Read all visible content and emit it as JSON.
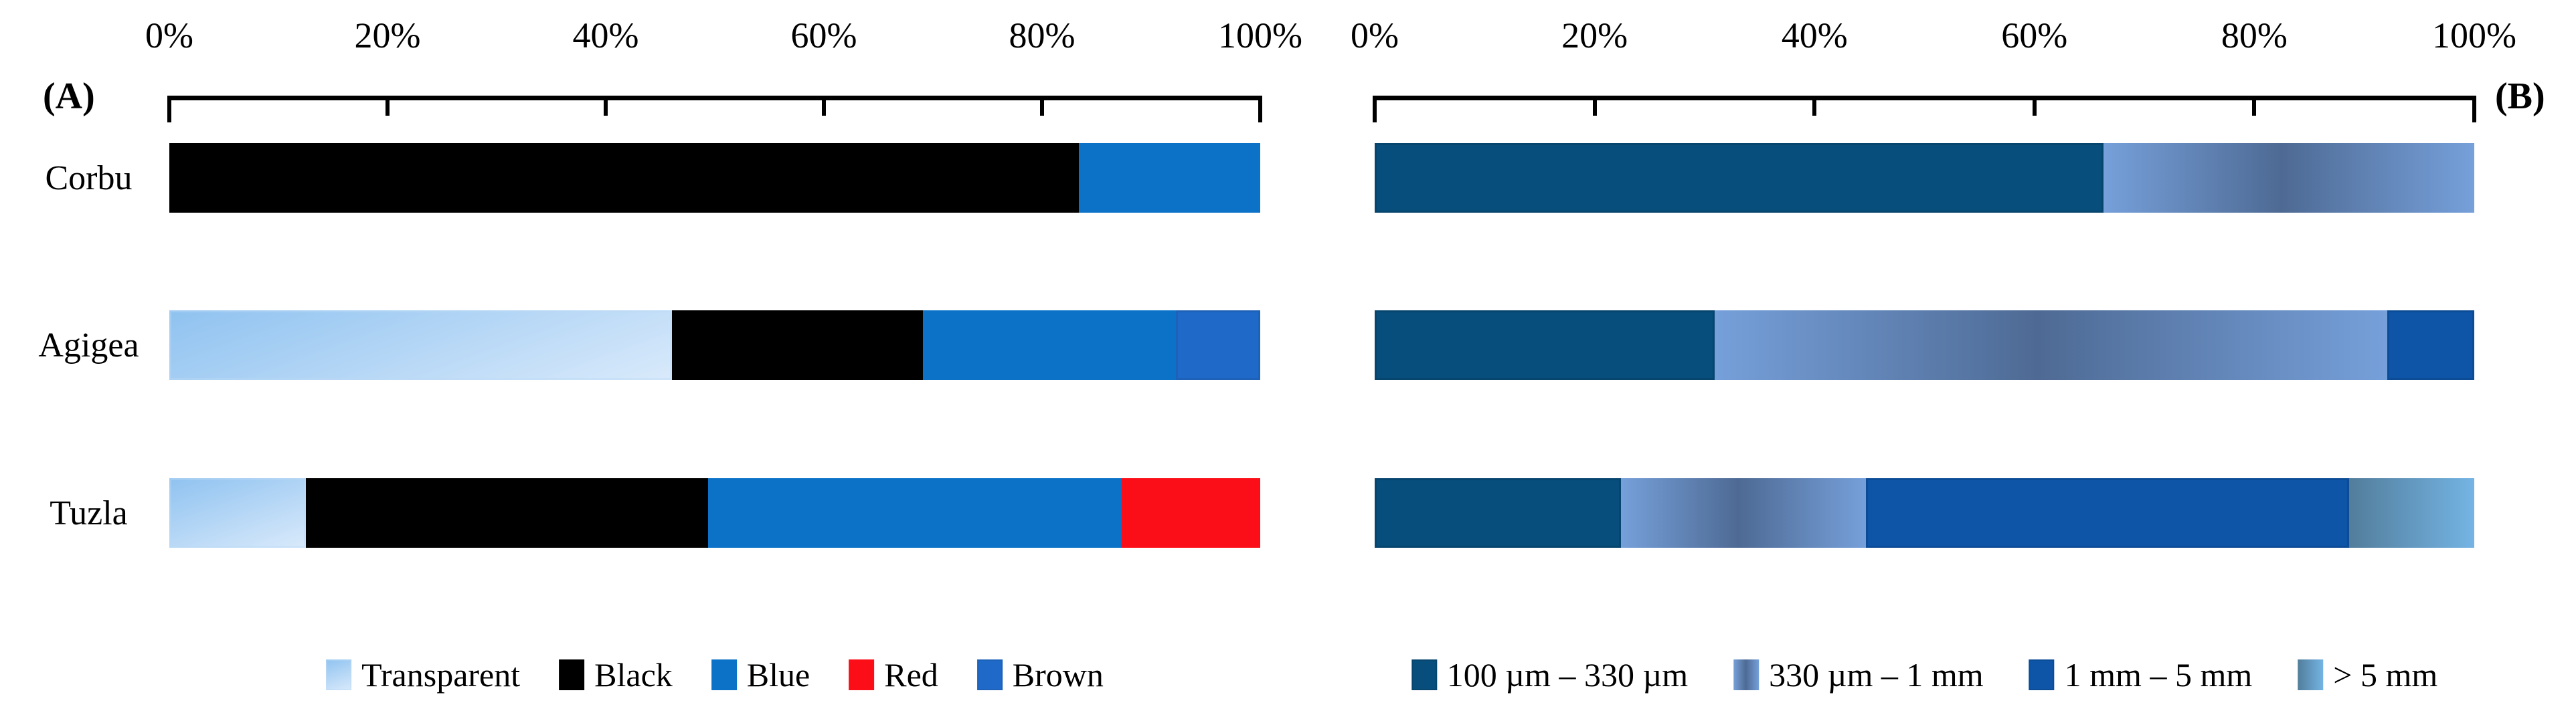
{
  "figure": {
    "background": "#ffffff",
    "text_color": "#000000"
  },
  "chart_data": [
    {
      "type": "bar",
      "orientation": "horizontal-stacked-100pct",
      "panel": "A",
      "panel_label": "(A)",
      "panel_label_side": "left",
      "categories": [
        "Corbu",
        "Agigea",
        "Tuzla"
      ],
      "axis": {
        "position": "top",
        "range": [
          0,
          100
        ],
        "unit": "%",
        "tick_labels": [
          "0%",
          "20%",
          "40%",
          "60%",
          "80%",
          "100%"
        ],
        "grid": false
      },
      "legend_position": "bottom",
      "series": [
        {
          "name": "Transparent",
          "values": [
            0,
            46.1,
            12.5
          ],
          "fill": {
            "kind": "diag",
            "from": "#8fc2f0",
            "to": "#d9eafb",
            "border": "#bcd9f5"
          }
        },
        {
          "name": "Black",
          "values": [
            83.4,
            23.0,
            36.9
          ],
          "fill": {
            "kind": "solid",
            "color": "#000000"
          }
        },
        {
          "name": "Blue",
          "values": [
            16.6,
            23.2,
            37.9
          ],
          "fill": {
            "kind": "solid",
            "color": "#0b72c7"
          }
        },
        {
          "name": "Red",
          "values": [
            0,
            0,
            12.7
          ],
          "fill": {
            "kind": "solid",
            "color": "#fb0e17"
          }
        },
        {
          "name": "Brown",
          "values": [
            0,
            7.7,
            0
          ],
          "fill": {
            "kind": "solid",
            "color": "#1f6ac9",
            "border": "#1b55a0"
          }
        }
      ]
    },
    {
      "type": "bar",
      "orientation": "horizontal-stacked-100pct",
      "panel": "B",
      "panel_label": "(B)",
      "panel_label_side": "right",
      "categories": [
        "Corbu",
        "Agigea",
        "Tuzla"
      ],
      "axis": {
        "position": "top",
        "range": [
          0,
          100
        ],
        "unit": "%",
        "tick_labels": [
          "0%",
          "20%",
          "40%",
          "60%",
          "80%",
          "100%"
        ],
        "grid": false
      },
      "legend_position": "bottom",
      "series": [
        {
          "name": "100 µm – 330 µm",
          "values": [
            66.3,
            30.9,
            22.4
          ],
          "fill": {
            "kind": "solid",
            "color": "#074e7c",
            "border": "#06395a"
          }
        },
        {
          "name": "330 µm – 1 mm",
          "values": [
            33.7,
            61.2,
            22.3
          ],
          "fill": {
            "kind": "centerDark",
            "edge": "#76a0da",
            "center": "#4e6a94"
          }
        },
        {
          "name": "1 mm – 5 mm",
          "values": [
            0,
            7.9,
            43.9
          ],
          "fill": {
            "kind": "solid",
            "color": "#0e55a8",
            "border": "#0a3f7e"
          }
        },
        {
          "name": "> 5 mm",
          "values": [
            0,
            0,
            11.4
          ],
          "fill": {
            "kind": "lr",
            "from": "#527d9b",
            "to": "#74b4e4"
          }
        }
      ]
    }
  ]
}
